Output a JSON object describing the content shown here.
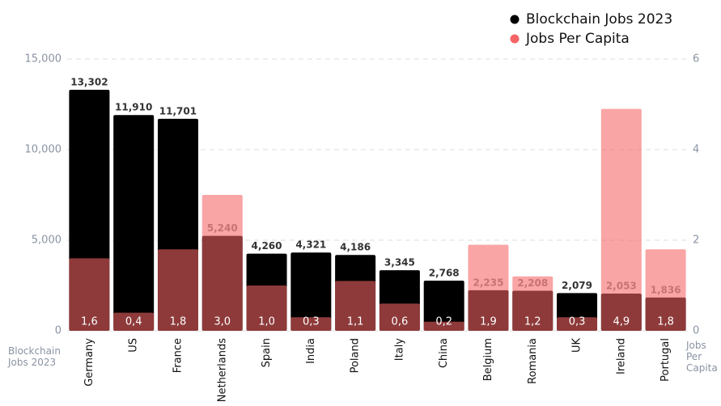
{
  "chart_data": {
    "type": "bar",
    "categories": [
      "Germany",
      "US",
      "France",
      "Netherlands",
      "Spain",
      "India",
      "Poland",
      "Italy",
      "China",
      "Belgium",
      "Romania",
      "UK",
      "Ireland",
      "Portugal"
    ],
    "series": [
      {
        "name": "Blockchain Jobs 2023",
        "color": "#000000",
        "values": [
          13302,
          11910,
          11701,
          5240,
          4260,
          4321,
          4186,
          3345,
          2768,
          2235,
          2208,
          2079,
          2053,
          1836
        ],
        "value_labels": [
          "13,302",
          "11,910",
          "11,701",
          "5,240",
          "4,260",
          "4,321",
          "4,186",
          "3,345",
          "2,768",
          "2,235",
          "2,208",
          "2,079",
          "2,053",
          "1,836"
        ]
      },
      {
        "name": "Jobs Per Capita",
        "color": "#f56464",
        "axis": "y2",
        "values": [
          1.6,
          0.4,
          1.8,
          3.0,
          1.0,
          0.3,
          1.1,
          0.6,
          0.2,
          1.9,
          1.2,
          0.3,
          4.9,
          1.8
        ],
        "value_labels": [
          "1,6",
          "0,4",
          "1,8",
          "3,0",
          "1,0",
          "0,3",
          "1,1",
          "0,6",
          "0,2",
          "1,9",
          "1,2",
          "0,3",
          "4,9",
          "1,8"
        ]
      }
    ],
    "ylabel": "Blockchain Jobs 2023",
    "y2label": "Jobs Per Capita",
    "ylim": [
      0,
      15000
    ],
    "yticks": [
      0,
      {
        "value": 5000,
        "label": "5,000"
      },
      {
        "value": 10000,
        "label": "10,000"
      },
      {
        "value": 15000,
        "label": "15,000"
      }
    ],
    "y2lim": [
      0,
      6
    ],
    "y2ticks": [
      0,
      2,
      4,
      6
    ],
    "grid": true,
    "legend": "top-right"
  }
}
